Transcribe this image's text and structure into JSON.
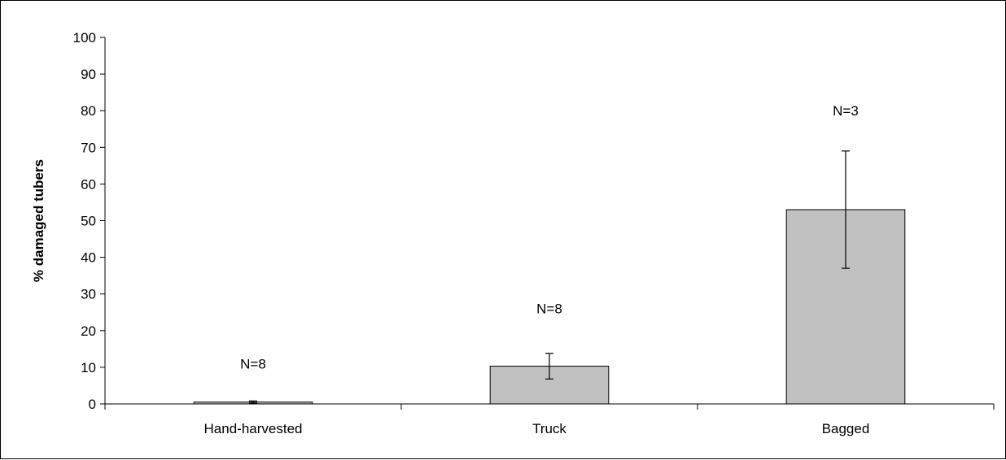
{
  "chart_data": {
    "type": "bar",
    "title": "",
    "xlabel": "",
    "ylabel": "% damaged tubers",
    "ylim": [
      0,
      100
    ],
    "yticks": [
      0,
      10,
      20,
      30,
      40,
      50,
      60,
      70,
      80,
      90,
      100
    ],
    "grid": false,
    "legend": "none",
    "categories": [
      "Hand-harvested",
      "Truck",
      "Bagged"
    ],
    "values": [
      0.5,
      10.3,
      53
    ],
    "error": [
      0.3,
      3.5,
      16
    ],
    "annotations": [
      "N=8",
      "N=8",
      "N=3"
    ],
    "annotation_y": [
      11,
      26,
      80
    ],
    "colors": {
      "bar_fill": "#c0c0c0",
      "bar_stroke": "#000000",
      "axis": "#000000",
      "text": "#000000"
    }
  }
}
